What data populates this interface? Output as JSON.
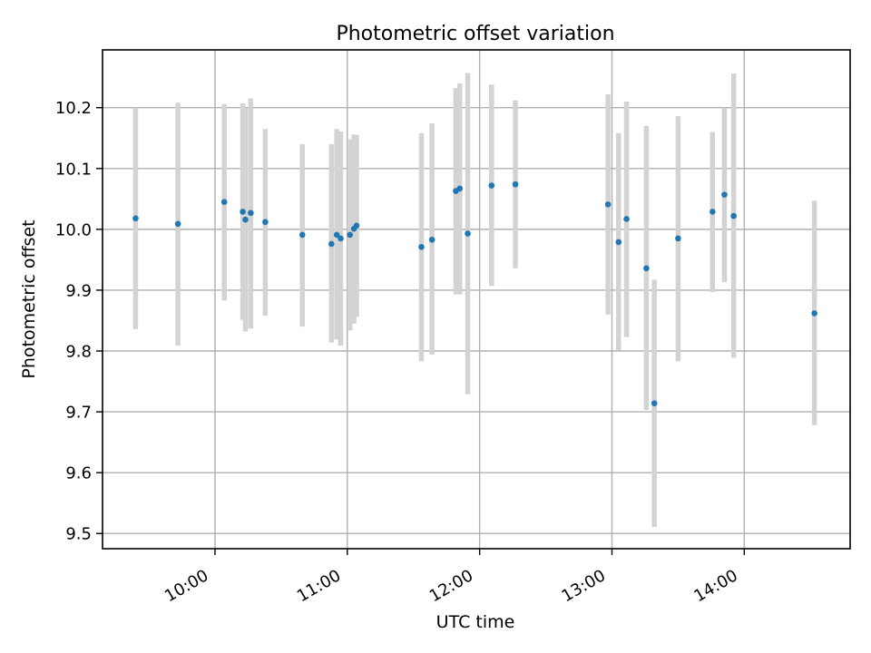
{
  "chart_data": {
    "type": "scatter",
    "title": "Photometric offset variation",
    "xlabel": "UTC time",
    "ylabel": "Photometric offset",
    "x_unit": "hours_utc",
    "xlim": [
      9.15,
      14.8
    ],
    "ylim": [
      9.475,
      10.295
    ],
    "xticks": [
      {
        "value": 10,
        "label": "10:00"
      },
      {
        "value": 11,
        "label": "11:00"
      },
      {
        "value": 12,
        "label": "12:00"
      },
      {
        "value": 13,
        "label": "13:00"
      },
      {
        "value": 14,
        "label": "14:00"
      }
    ],
    "yticks": [
      {
        "value": 9.5,
        "label": "9.5"
      },
      {
        "value": 9.6,
        "label": "9.6"
      },
      {
        "value": 9.7,
        "label": "9.7"
      },
      {
        "value": 9.8,
        "label": "9.8"
      },
      {
        "value": 9.9,
        "label": "9.9"
      },
      {
        "value": 10.0,
        "label": "10.0"
      },
      {
        "value": 10.1,
        "label": "10.1"
      },
      {
        "value": 10.2,
        "label": "10.2"
      }
    ],
    "grid": true,
    "legend": "none",
    "colors": {
      "marker": "#1f77b4",
      "errorbar": "#d3d3d3",
      "grid": "#b0b0b0",
      "axes": "#000000"
    },
    "series": [
      {
        "name": "offset",
        "points": [
          {
            "x": 9.4,
            "y": 10.018,
            "ylow": 9.836,
            "yhigh": 10.2
          },
          {
            "x": 9.72,
            "y": 10.009,
            "ylow": 9.809,
            "yhigh": 10.208
          },
          {
            "x": 10.07,
            "y": 10.045,
            "ylow": 9.883,
            "yhigh": 10.206
          },
          {
            "x": 10.21,
            "y": 10.029,
            "ylow": 9.851,
            "yhigh": 10.207
          },
          {
            "x": 10.23,
            "y": 10.016,
            "ylow": 9.832,
            "yhigh": 10.199
          },
          {
            "x": 10.27,
            "y": 10.027,
            "ylow": 9.837,
            "yhigh": 10.215
          },
          {
            "x": 10.38,
            "y": 10.012,
            "ylow": 9.858,
            "yhigh": 10.165
          },
          {
            "x": 10.66,
            "y": 9.991,
            "ylow": 9.84,
            "yhigh": 10.14
          },
          {
            "x": 10.88,
            "y": 9.976,
            "ylow": 9.814,
            "yhigh": 10.14
          },
          {
            "x": 10.92,
            "y": 9.991,
            "ylow": 9.819,
            "yhigh": 10.165
          },
          {
            "x": 10.95,
            "y": 9.985,
            "ylow": 9.809,
            "yhigh": 10.161
          },
          {
            "x": 11.02,
            "y": 9.991,
            "ylow": 9.834,
            "yhigh": 10.148
          },
          {
            "x": 11.05,
            "y": 10.001,
            "ylow": 9.845,
            "yhigh": 10.156
          },
          {
            "x": 11.07,
            "y": 10.006,
            "ylow": 9.856,
            "yhigh": 10.155
          },
          {
            "x": 11.56,
            "y": 9.971,
            "ylow": 9.783,
            "yhigh": 10.158
          },
          {
            "x": 11.64,
            "y": 9.983,
            "ylow": 9.794,
            "yhigh": 10.174
          },
          {
            "x": 11.82,
            "y": 10.063,
            "ylow": 9.893,
            "yhigh": 10.232
          },
          {
            "x": 11.85,
            "y": 10.067,
            "ylow": 9.893,
            "yhigh": 10.24
          },
          {
            "x": 11.91,
            "y": 9.993,
            "ylow": 9.729,
            "yhigh": 10.257
          },
          {
            "x": 12.09,
            "y": 10.072,
            "ylow": 9.907,
            "yhigh": 10.238
          },
          {
            "x": 12.27,
            "y": 10.074,
            "ylow": 9.936,
            "yhigh": 10.212
          },
          {
            "x": 12.97,
            "y": 10.041,
            "ylow": 9.86,
            "yhigh": 10.222
          },
          {
            "x": 13.05,
            "y": 9.979,
            "ylow": 9.801,
            "yhigh": 10.158
          },
          {
            "x": 13.11,
            "y": 10.017,
            "ylow": 9.823,
            "yhigh": 10.21
          },
          {
            "x": 13.26,
            "y": 9.936,
            "ylow": 9.703,
            "yhigh": 10.17
          },
          {
            "x": 13.32,
            "y": 9.714,
            "ylow": 9.511,
            "yhigh": 9.917
          },
          {
            "x": 13.5,
            "y": 9.985,
            "ylow": 9.783,
            "yhigh": 10.186
          },
          {
            "x": 13.76,
            "y": 10.029,
            "ylow": 9.897,
            "yhigh": 10.16
          },
          {
            "x": 13.85,
            "y": 10.057,
            "ylow": 9.913,
            "yhigh": 10.2
          },
          {
            "x": 13.92,
            "y": 10.022,
            "ylow": 9.789,
            "yhigh": 10.256
          },
          {
            "x": 14.53,
            "y": 9.862,
            "ylow": 9.678,
            "yhigh": 10.047
          }
        ]
      }
    ]
  }
}
